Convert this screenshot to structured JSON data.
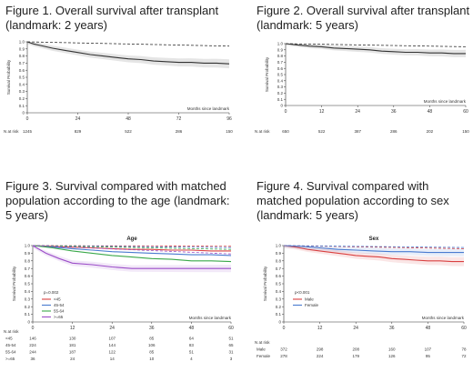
{
  "figures": [
    {
      "title": "Figure 1. Overall survival after transplant (landmark: 2 years)",
      "chart_data": {
        "type": "line",
        "title": "",
        "ylabel": "Survival Probability",
        "xlabel": "Months since landmark",
        "x_ticks": [
          "0",
          "24",
          "48",
          "72",
          "96"
        ],
        "y_ticks": [
          "0",
          "0.1",
          "0.2",
          "0.3",
          "0.4",
          "0.5",
          "0.6",
          "0.7",
          "0.8",
          "0.9",
          "1.0"
        ],
        "xlim": [
          0,
          96
        ],
        "ylim": [
          0,
          1
        ],
        "series": [
          {
            "style": "solid",
            "color": "#333333",
            "band": true,
            "x": [
              0,
              3,
              6,
              12,
              18,
              24,
              30,
              36,
              42,
              48,
              54,
              60,
              66,
              72,
              78,
              84,
              90,
              96
            ],
            "y": [
              1.0,
              0.97,
              0.95,
              0.91,
              0.88,
              0.85,
              0.82,
              0.8,
              0.78,
              0.76,
              0.75,
              0.73,
              0.72,
              0.71,
              0.71,
              0.7,
              0.7,
              0.69
            ]
          },
          {
            "style": "dashed",
            "color": "#333333",
            "x": [
              0,
              96
            ],
            "y": [
              1.0,
              0.94
            ]
          }
        ],
        "at_risk": {
          "label": "N at risk",
          "rows": [
            {
              "name": "",
              "values": [
                "1245",
                "829",
                "522",
                "286",
                "150"
              ]
            }
          ]
        }
      }
    },
    {
      "title": "Figure 2. Overall survival after transplant (landmark: 5 years)",
      "chart_data": {
        "type": "line",
        "title": "",
        "ylabel": "Survival Probability",
        "xlabel": "Months since landmark",
        "x_ticks": [
          "0",
          "12",
          "24",
          "36",
          "48",
          "60"
        ],
        "y_ticks": [
          "0",
          "0.1",
          "0.2",
          "0.3",
          "0.4",
          "0.5",
          "0.6",
          "0.7",
          "0.8",
          "0.9",
          "1.0"
        ],
        "xlim": [
          0,
          60
        ],
        "ylim": [
          0,
          1
        ],
        "series": [
          {
            "style": "solid",
            "color": "#333333",
            "band": true,
            "x": [
              0,
              4,
              8,
              12,
              16,
              20,
              24,
              28,
              32,
              36,
              40,
              44,
              48,
              52,
              56,
              60
            ],
            "y": [
              1.0,
              0.98,
              0.96,
              0.95,
              0.93,
              0.92,
              0.91,
              0.9,
              0.88,
              0.87,
              0.86,
              0.86,
              0.85,
              0.85,
              0.84,
              0.84
            ]
          },
          {
            "style": "dashed",
            "color": "#333333",
            "x": [
              0,
              60
            ],
            "y": [
              1.0,
              0.95
            ]
          }
        ],
        "at_risk": {
          "label": "N at risk",
          "rows": [
            {
              "name": "",
              "values": [
                "650",
                "522",
                "387",
                "286",
                "202",
                "150"
              ]
            }
          ]
        }
      }
    },
    {
      "title": "Figure 3. Survival compared with matched population according to the age (landmark: 5 years)",
      "chart_data": {
        "type": "line",
        "title": "Age",
        "ylabel": "Survival Probability",
        "xlabel": "Months since landmark",
        "x_ticks": [
          "0",
          "12",
          "24",
          "36",
          "48",
          "60"
        ],
        "y_ticks": [
          "0",
          "0.1",
          "0.2",
          "0.3",
          "0.4",
          "0.5",
          "0.6",
          "0.7",
          "0.8",
          "0.9",
          "1.0"
        ],
        "xlim": [
          0,
          60
        ],
        "ylim": [
          0,
          1
        ],
        "annotation": "p=0.002",
        "series": [
          {
            "name": "<45",
            "color": "#d94040",
            "style": "solid",
            "x": [
              0,
              6,
              12,
              18,
              24,
              30,
              36,
              42,
              48,
              54,
              60
            ],
            "y": [
              1.0,
              0.99,
              0.98,
              0.97,
              0.96,
              0.95,
              0.95,
              0.94,
              0.94,
              0.93,
              0.93
            ]
          },
          {
            "name": "45-54",
            "color": "#4a7bd0",
            "style": "solid",
            "x": [
              0,
              6,
              12,
              18,
              24,
              30,
              36,
              42,
              48,
              54,
              60
            ],
            "y": [
              1.0,
              0.98,
              0.96,
              0.94,
              0.92,
              0.91,
              0.9,
              0.89,
              0.88,
              0.88,
              0.87
            ]
          },
          {
            "name": "55-64",
            "color": "#3aa84a",
            "style": "solid",
            "x": [
              0,
              6,
              12,
              18,
              24,
              30,
              36,
              42,
              48,
              54,
              60
            ],
            "y": [
              1.0,
              0.97,
              0.93,
              0.9,
              0.87,
              0.85,
              0.83,
              0.82,
              0.8,
              0.8,
              0.79
            ]
          },
          {
            "name": ">=65",
            "color": "#9b4dc8",
            "style": "solid",
            "band": true,
            "x": [
              0,
              4,
              8,
              12,
              18,
              24,
              30,
              36,
              48,
              60
            ],
            "y": [
              1.0,
              0.9,
              0.83,
              0.77,
              0.75,
              0.72,
              0.7,
              0.7,
              0.7,
              0.7
            ]
          },
          {
            "color": "#d94040",
            "style": "dashed",
            "x": [
              0,
              60
            ],
            "y": [
              1.0,
              0.99
            ]
          },
          {
            "color": "#4a7bd0",
            "style": "dashed",
            "x": [
              0,
              60
            ],
            "y": [
              1.0,
              0.975
            ]
          },
          {
            "color": "#3aa84a",
            "style": "dashed",
            "x": [
              0,
              60
            ],
            "y": [
              1.0,
              0.95
            ]
          },
          {
            "color": "#9b4dc8",
            "style": "dashed",
            "x": [
              0,
              60
            ],
            "y": [
              1.0,
              0.89
            ]
          }
        ],
        "legend": [
          {
            "name": "<45",
            "color": "#d94040"
          },
          {
            "name": "45-54",
            "color": "#4a7bd0"
          },
          {
            "name": "55-64",
            "color": "#3aa84a"
          },
          {
            "name": ">=65",
            "color": "#9b4dc8"
          }
        ],
        "at_risk": {
          "label": "N at risk",
          "rows": [
            {
              "name": "<45",
              "values": [
                "146",
                "130",
                "107",
                "85",
                "64",
                "51"
              ]
            },
            {
              "name": "45-54",
              "values": [
                "224",
                "181",
                "144",
                "106",
                "83",
                "65"
              ]
            },
            {
              "name": "55-64",
              "values": [
                "244",
                "187",
                "122",
                "85",
                "51",
                "31"
              ]
            },
            {
              "name": ">=65",
              "values": [
                "36",
                "24",
                "14",
                "10",
                "4",
                "3"
              ]
            }
          ]
        }
      }
    },
    {
      "title": "Figure 4. Survival compared with matched population according to sex (landmark: 5 years)",
      "chart_data": {
        "type": "line",
        "title": "Sex",
        "ylabel": "Survival Probability",
        "xlabel": "Months since landmark",
        "x_ticks": [
          "0",
          "12",
          "24",
          "36",
          "48",
          "60"
        ],
        "y_ticks": [
          "0",
          "0.1",
          "0.2",
          "0.3",
          "0.4",
          "0.5",
          "0.6",
          "0.7",
          "0.8",
          "0.9",
          "1.0"
        ],
        "xlim": [
          0,
          60
        ],
        "ylim": [
          0,
          1
        ],
        "annotation": "p<0.001",
        "series": [
          {
            "name": "Male",
            "color": "#d94040",
            "style": "solid",
            "band": true,
            "x": [
              0,
              4,
              8,
              12,
              16,
              20,
              24,
              28,
              32,
              36,
              40,
              44,
              48,
              52,
              56,
              60
            ],
            "y": [
              1.0,
              0.98,
              0.95,
              0.93,
              0.91,
              0.89,
              0.87,
              0.86,
              0.85,
              0.83,
              0.82,
              0.81,
              0.8,
              0.8,
              0.79,
              0.79
            ]
          },
          {
            "name": "Female",
            "color": "#4a7bd0",
            "style": "solid",
            "band": true,
            "x": [
              0,
              6,
              12,
              18,
              24,
              30,
              36,
              42,
              48,
              54,
              60
            ],
            "y": [
              1.0,
              0.99,
              0.97,
              0.95,
              0.94,
              0.93,
              0.92,
              0.92,
              0.91,
              0.91,
              0.91
            ]
          },
          {
            "color": "#d94040",
            "style": "dashed",
            "x": [
              0,
              60
            ],
            "y": [
              1.0,
              0.96
            ]
          },
          {
            "color": "#4a7bd0",
            "style": "dashed",
            "x": [
              0,
              60
            ],
            "y": [
              1.0,
              0.975
            ]
          }
        ],
        "legend": [
          {
            "name": "Male",
            "color": "#d94040"
          },
          {
            "name": "Female",
            "color": "#4a7bd0"
          }
        ],
        "at_risk": {
          "label": "N at risk",
          "rows": [
            {
              "name": "Male",
              "values": [
                "372",
                "298",
                "208",
                "160",
                "107",
                "78"
              ]
            },
            {
              "name": "Female",
              "values": [
                "278",
                "224",
                "179",
                "126",
                "95",
                "72"
              ]
            }
          ]
        }
      }
    }
  ]
}
